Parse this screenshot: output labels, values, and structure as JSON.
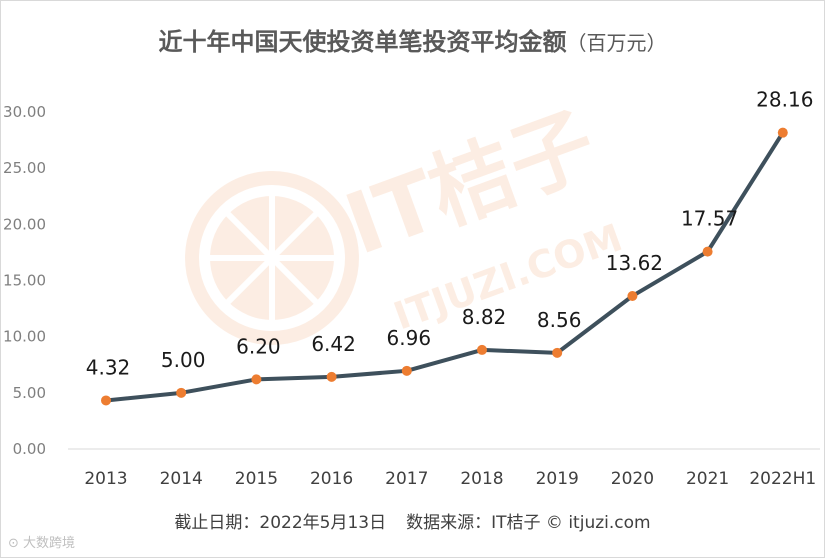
{
  "header": {
    "title": "近十年中国天使投资单笔投资平均金额",
    "unit": "（百万元）"
  },
  "footer": {
    "date": "截止日期：2022年5月13日",
    "source": "数据来源：IT桔子 © itjuzi.com"
  },
  "watermark": {
    "brand": "IT桔子",
    "domain": "ITJUZI.COM"
  },
  "corner_logo": {
    "text": "大数跨境"
  },
  "colors": {
    "line": "#3e505c",
    "marker": "#ed7d31",
    "axis": "#d9d9d9"
  },
  "chart_data": {
    "type": "line",
    "title": "近十年中国天使投资单笔投资平均金额（百万元）",
    "categories": [
      "2013",
      "2014",
      "2015",
      "2016",
      "2017",
      "2018",
      "2019",
      "2020",
      "2021",
      "2022H1"
    ],
    "values": [
      4.32,
      5.0,
      6.2,
      6.42,
      6.96,
      8.82,
      8.56,
      13.62,
      17.57,
      28.16
    ],
    "value_labels": [
      "4.32",
      "5.00",
      "6.20",
      "6.42",
      "6.96",
      "8.82",
      "8.56",
      "13.62",
      "17.57",
      "28.16"
    ],
    "yticks": [
      "0.00",
      "5.00",
      "10.00",
      "15.00",
      "20.00",
      "25.00",
      "30.00"
    ],
    "ylim": [
      0,
      30
    ],
    "grid": false,
    "legend": "none"
  }
}
